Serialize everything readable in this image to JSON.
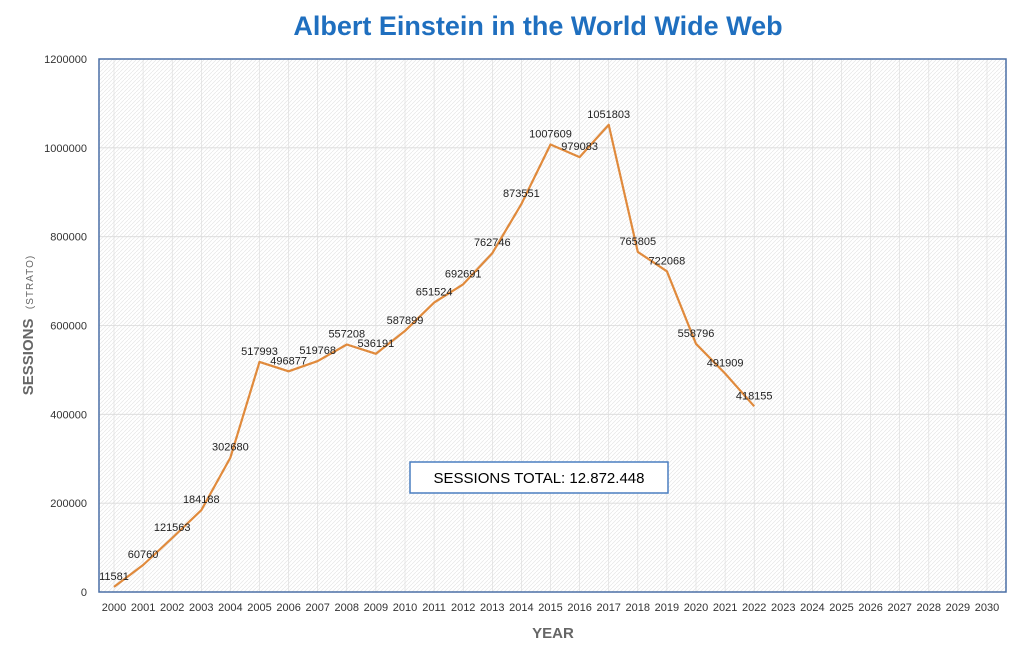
{
  "chart_data": {
    "type": "line",
    "title": "Albert Einstein in the World Wide Web",
    "xlabel": "YEAR",
    "ylabel": "SESSIONS",
    "ylabel_sub": "(STRATO)",
    "x_categories": [
      "2000",
      "2001",
      "2002",
      "2003",
      "2004",
      "2005",
      "2006",
      "2007",
      "2008",
      "2009",
      "2010",
      "2011",
      "2012",
      "2013",
      "2014",
      "2015",
      "2016",
      "2017",
      "2018",
      "2019",
      "2020",
      "2021",
      "2022",
      "2023",
      "2024",
      "2025",
      "2026",
      "2027",
      "2028",
      "2029",
      "2030"
    ],
    "y_ticks": [
      "0",
      "200000",
      "400000",
      "600000",
      "800000",
      "1000000",
      "1200000"
    ],
    "ylim": [
      0,
      1200000
    ],
    "grid": true,
    "series": [
      {
        "color": "#E08A3C",
        "x": [
          "2000",
          "2001",
          "2002",
          "2003",
          "2004",
          "2005",
          "2006",
          "2007",
          "2008",
          "2009",
          "2010",
          "2011",
          "2012",
          "2013",
          "2014",
          "2015",
          "2016",
          "2017",
          "2018",
          "2019",
          "2020",
          "2021",
          "2022"
        ],
        "values": [
          11581,
          60760,
          121563,
          184188,
          302680,
          517993,
          496877,
          519768,
          557208,
          536191,
          587899,
          651524,
          692691,
          762746,
          873551,
          1007609,
          979083,
          1051803,
          765805,
          722068,
          558796,
          491909,
          418155
        ],
        "labels": [
          "11581",
          "60760",
          "121563",
          "184188",
          "302680",
          "517993",
          "496877",
          "519768",
          "557208",
          "536191",
          "587899",
          "651524",
          "692691",
          "762746",
          "873551",
          "1007609",
          "979083",
          "1051803",
          "765805",
          "722068",
          "558796",
          "491909",
          "418155"
        ]
      }
    ],
    "annotation": "SESSIONS TOTAL: 12.872.448"
  },
  "colors": {
    "title": "#1F6FBF",
    "plot_border": "#4A6FA5",
    "grid": "#DADADA",
    "annotation_border": "#4A7EC0"
  }
}
